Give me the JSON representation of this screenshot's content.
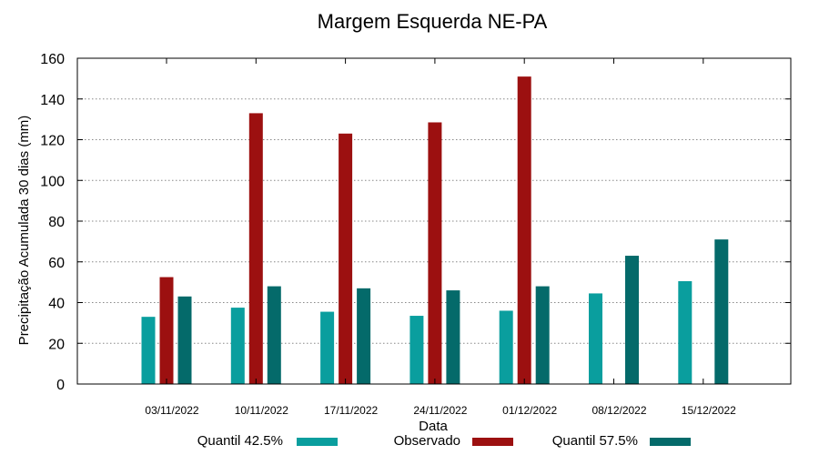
{
  "chart_data": {
    "type": "bar",
    "title": "Margem Esquerda NE-PA",
    "xlabel": "Data",
    "ylabel": "Precipitação Acumulada 30 dias (mm)",
    "ylim": [
      0,
      160
    ],
    "yticks": [
      0,
      20,
      40,
      60,
      80,
      100,
      120,
      140,
      160
    ],
    "grid": true,
    "legend_position": "bottom",
    "categories": [
      "03/11/2022",
      "10/11/2022",
      "17/11/2022",
      "24/11/2022",
      "01/12/2022",
      "08/12/2022",
      "15/12/2022"
    ],
    "series": [
      {
        "name": "Quantil 42.5%",
        "color": "#0a9e9e",
        "values": [
          33,
          37.5,
          35.5,
          33.5,
          36,
          44.5,
          50.5
        ]
      },
      {
        "name": "Observado",
        "color": "#9c1010",
        "values": [
          52.5,
          133,
          123,
          128.5,
          151,
          null,
          null
        ]
      },
      {
        "name": "Quantil 57.5%",
        "color": "#046a6a",
        "values": [
          43,
          48,
          47,
          46,
          48,
          63,
          71
        ]
      }
    ]
  }
}
